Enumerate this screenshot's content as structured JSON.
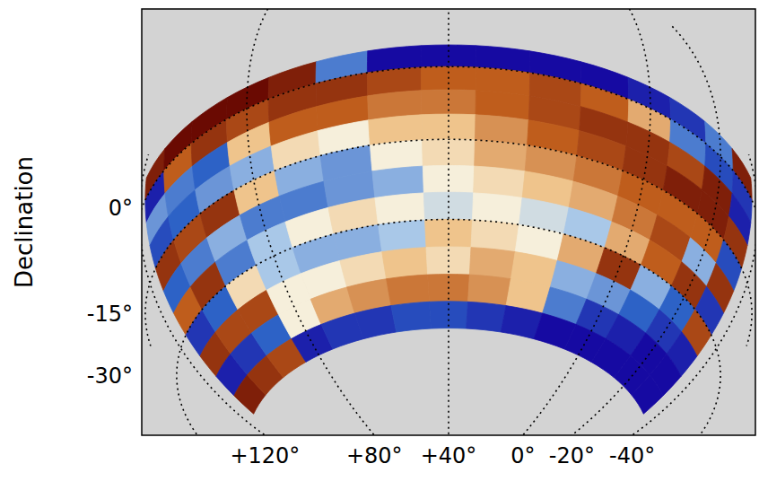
{
  "chart_data": {
    "type": "heatmap",
    "ylabel": "Declination",
    "grid": true,
    "line_style": "dotted",
    "xticks": [
      {
        "value": 120,
        "label": "+120°"
      },
      {
        "value": 80,
        "label": "+80°"
      },
      {
        "value": 40,
        "label": "+40°"
      },
      {
        "value": 0,
        "label": "0°"
      },
      {
        "value": -20,
        "label": "-20°"
      },
      {
        "value": -40,
        "label": "-40°"
      }
    ],
    "yticks": [
      {
        "value": 0,
        "label": "0°"
      },
      {
        "value": -15,
        "label": "-15°"
      },
      {
        "value": -30,
        "label": "-30°"
      }
    ],
    "ra_edges": [
      115,
      105,
      95,
      85,
      75,
      65,
      55,
      45,
      35,
      25,
      15,
      5,
      -5,
      -15,
      -25,
      -35
    ],
    "dec_edges": [
      5,
      0,
      -5,
      -10,
      -15,
      -20,
      -25,
      -30,
      -35,
      -40,
      -45,
      -50
    ],
    "zlim": [
      -1,
      1
    ],
    "values": [
      [
        0.9,
        1,
        1,
        1,
        0.9,
        -0.5,
        -1,
        -1,
        -1,
        -1,
        -1,
        -0.9,
        -0.8,
        -0.5,
        0.9
      ],
      [
        -0.9,
        0.6,
        0.8,
        0.7,
        0.8,
        0.8,
        0.7,
        0.6,
        0.6,
        0.7,
        0.6,
        0.3,
        -0.5,
        -0.7,
        -0.8
      ],
      [
        -0.4,
        -0.5,
        -0.6,
        0.2,
        0.6,
        0.6,
        0.5,
        0.5,
        0.6,
        0.7,
        0.8,
        0.8,
        0.7,
        0.9,
        -0.9
      ],
      [
        -0.7,
        -0.6,
        -0.4,
        -0.3,
        0.1,
        0,
        0.2,
        0.2,
        0.4,
        0.6,
        0.7,
        0.8,
        0.9,
        0.9,
        0.8
      ],
      [
        0.8,
        0.7,
        0.8,
        0.2,
        -0.3,
        -0.4,
        0,
        0.1,
        0.3,
        0.4,
        0.5,
        0.6,
        0.6,
        0.6,
        -0.7
      ],
      [
        -0.6,
        -0.5,
        -0.3,
        -0.5,
        -0.5,
        -0.4,
        -0.3,
        0,
        0.1,
        0.2,
        0.3,
        0.5,
        0.7,
        -0.3,
        0.8
      ],
      [
        0.6,
        0.8,
        -0.5,
        -0.2,
        0,
        0.1,
        0,
        -0.1,
        0,
        -0.1,
        -0.2,
        0.3,
        0.6,
        0.8,
        -0.8
      ],
      [
        -0.8,
        -0.6,
        0.1,
        -0.2,
        -0.3,
        -0.3,
        -0.2,
        0.2,
        0.1,
        0,
        0.3,
        0.8,
        -0.3,
        -0.6,
        0.7
      ],
      [
        0.8,
        0.7,
        0.7,
        0,
        0,
        0.1,
        0.2,
        0.1,
        0.3,
        0.2,
        -0.3,
        -0.4,
        -0.6,
        -0.8,
        -0.9
      ],
      [
        -0.9,
        -0.8,
        -0.6,
        0,
        0.3,
        0.4,
        0.5,
        0.5,
        0.4,
        0.2,
        -0.5,
        -0.8,
        -0.9,
        -1,
        -1
      ],
      [
        0.9,
        0.8,
        0.7,
        -0.9,
        -0.8,
        -0.8,
        -0.7,
        -0.7,
        -0.8,
        -0.9,
        -1,
        -1,
        -1,
        -1,
        -1
      ]
    ]
  }
}
